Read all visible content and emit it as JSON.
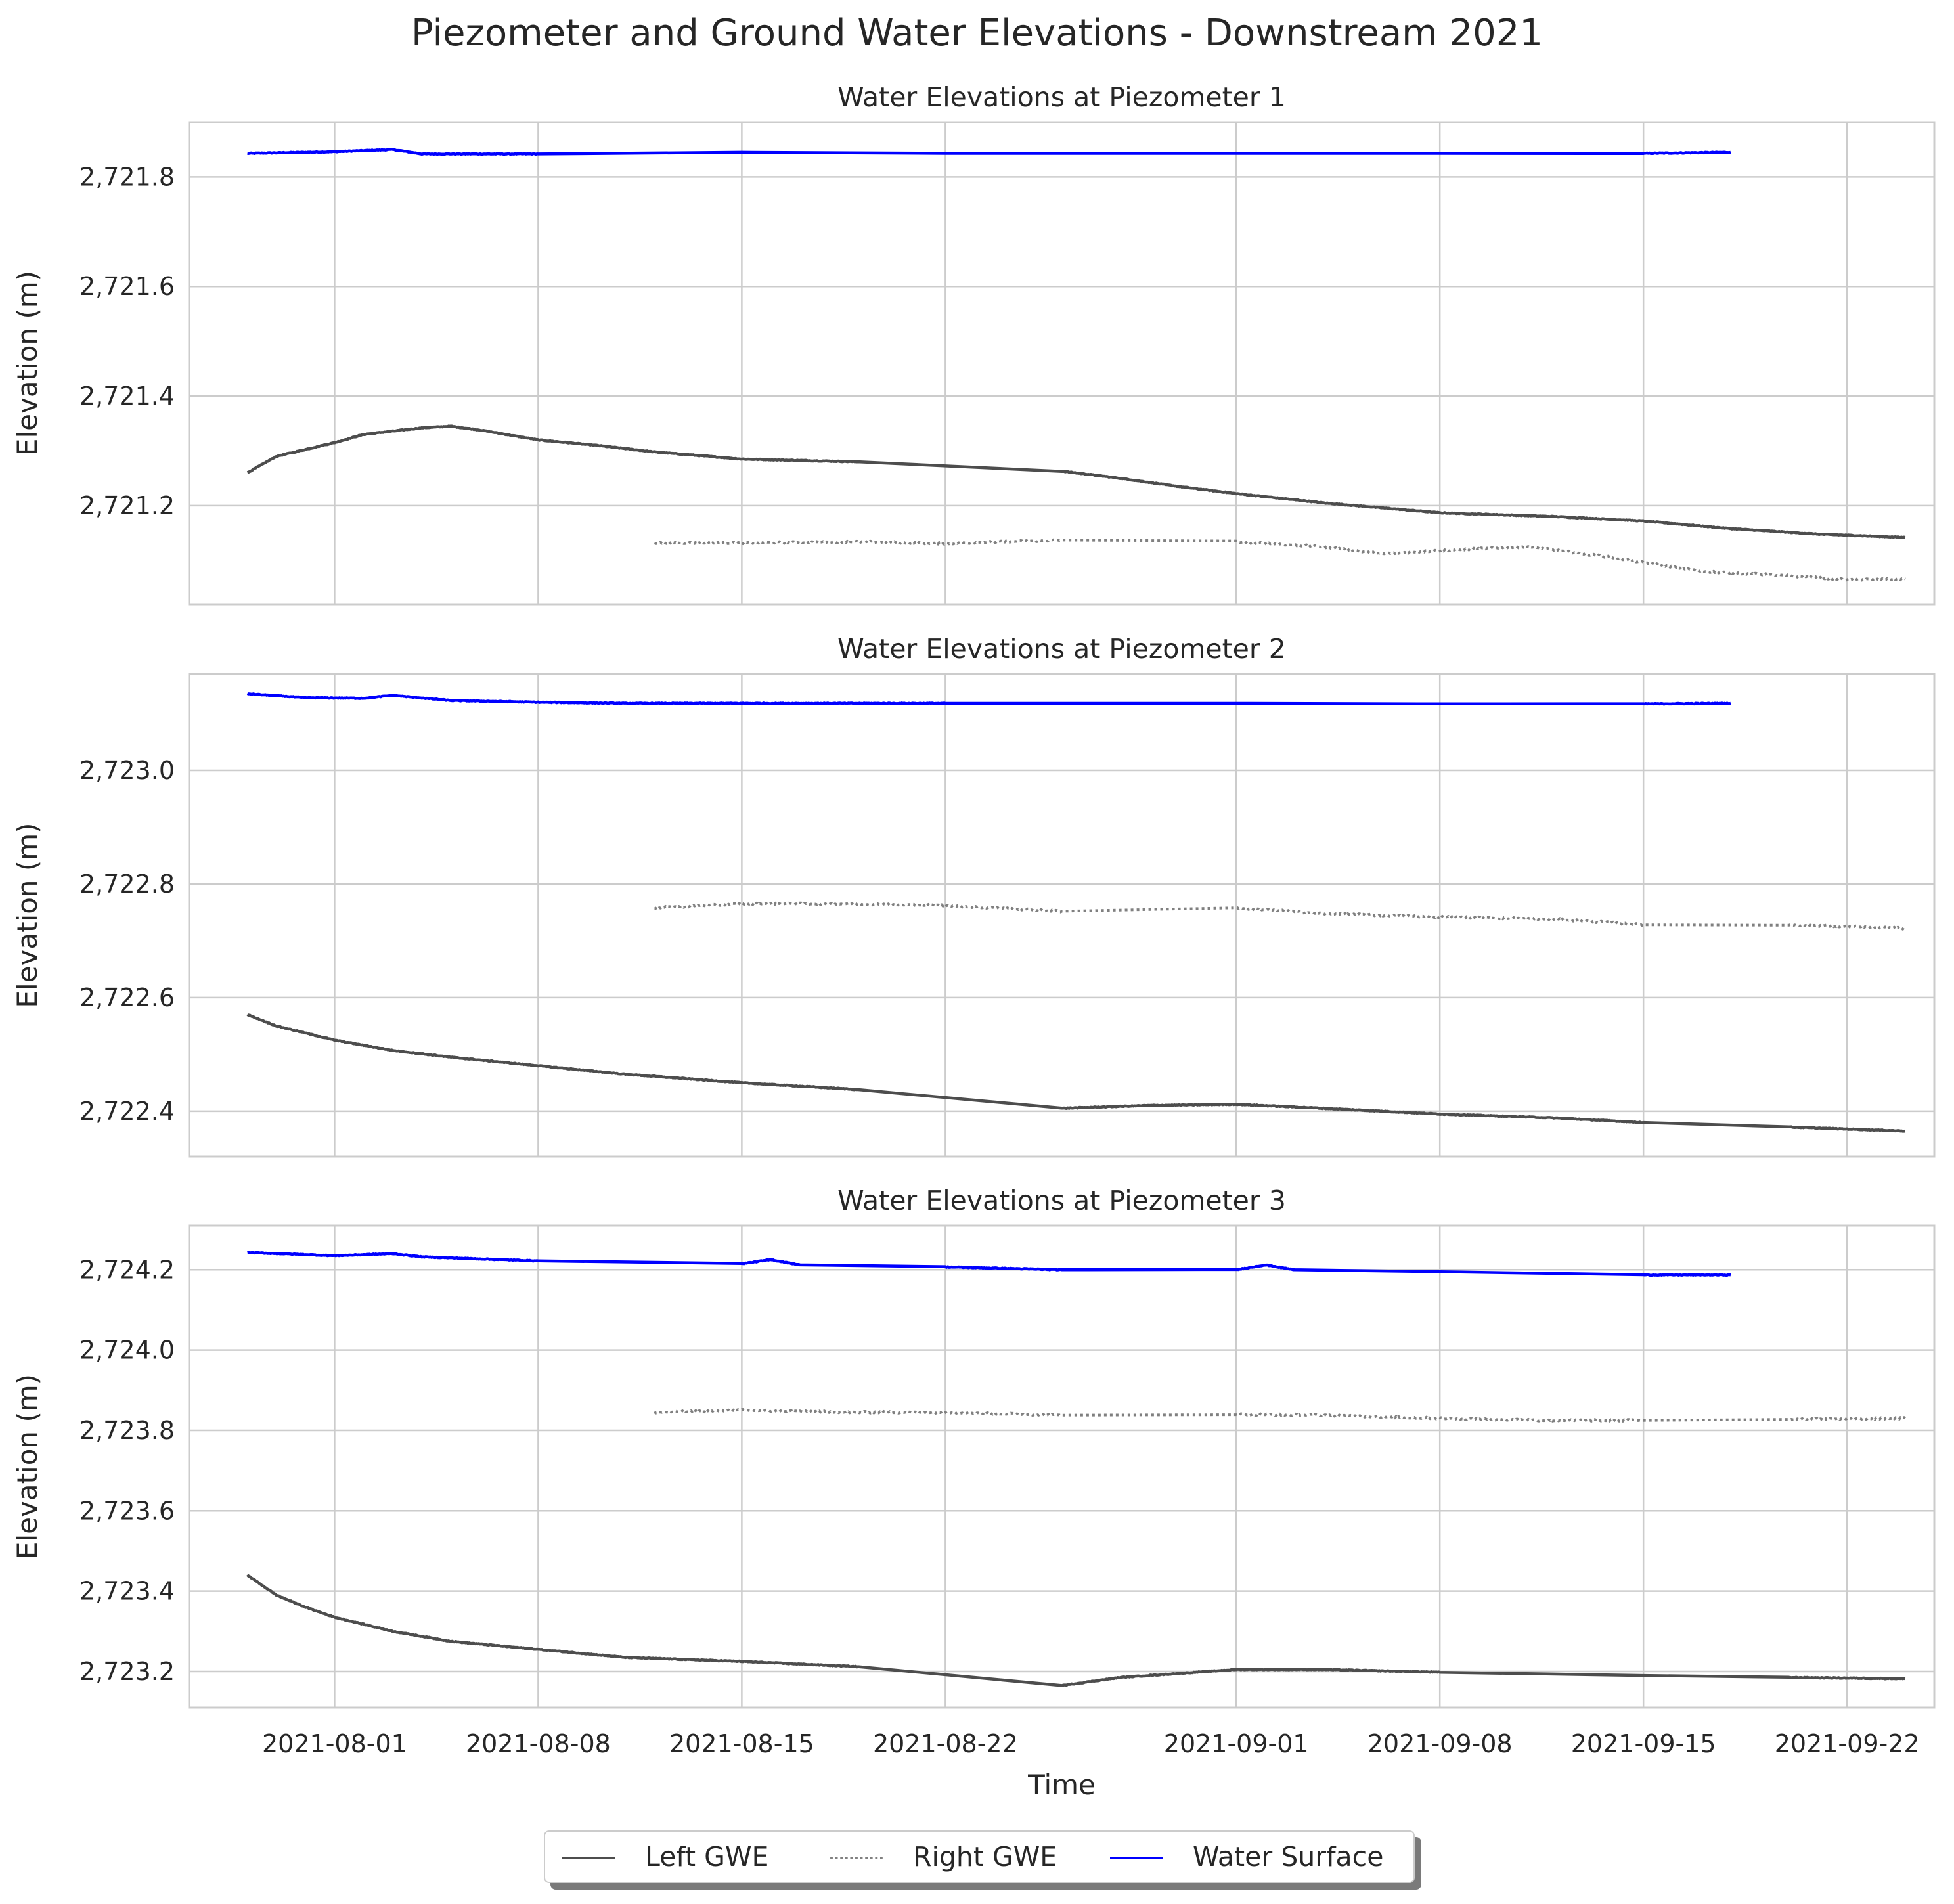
{
  "title": "Piezometer and Ground Water Elevations - Downstream 2021",
  "xlabel": "Time",
  "ylabel": "Elevation (m)",
  "legend": [
    {
      "label": "Left GWE",
      "color": "#4d4d4d",
      "style": "solid"
    },
    {
      "label": "Right GWE",
      "color": "#808080",
      "style": "dotted"
    },
    {
      "label": "Water Surface",
      "color": "#0000ff",
      "style": "solid"
    }
  ],
  "chart_data": {
    "type": "line",
    "x_type": "date",
    "x_ticks": [
      "2021-08-01",
      "2021-08-08",
      "2021-08-15",
      "2021-08-22",
      "2021-09-01",
      "2021-09-08",
      "2021-09-15",
      "2021-09-22"
    ],
    "xlim": [
      "2021-07-27",
      "2021-09-25"
    ],
    "grid": true,
    "legend_position": "bottom-center",
    "panels": [
      {
        "title": "Water Elevations at Piezometer 1",
        "ylim": [
          2721.02,
          2721.9
        ],
        "y_ticks": [
          2721.2,
          2721.4,
          2721.6,
          2721.8
        ],
        "y_tick_labels": [
          "2,721.2",
          "2,721.4",
          "2,721.6",
          "2,721.8"
        ],
        "series": [
          {
            "name": "Water Surface",
            "segments": [
              [
                [
                  "2021-07-29",
                  2721.843
                ],
                [
                  "2021-08-01",
                  2721.846
                ],
                [
                  "2021-08-03",
                  2721.85
                ],
                [
                  "2021-08-04",
                  2721.842
                ],
                [
                  "2021-08-08",
                  2721.842
                ],
                [
                  "2021-08-15",
                  2721.845
                ],
                [
                  "2021-08-22",
                  2721.843
                ],
                [
                  "2021-09-01",
                  2721.843
                ],
                [
                  "2021-09-08",
                  2721.843
                ],
                [
                  "2021-09-15",
                  2721.843
                ],
                [
                  "2021-09-18",
                  2721.845
                ]
              ]
            ]
          },
          {
            "name": "Left GWE",
            "segments": [
              [
                [
                  "2021-07-29",
                  2721.26
                ],
                [
                  "2021-07-30",
                  2721.29
                ],
                [
                  "2021-08-01",
                  2721.315
                ],
                [
                  "2021-08-02",
                  2721.33
                ],
                [
                  "2021-08-04",
                  2721.342
                ],
                [
                  "2021-08-05",
                  2721.345
                ],
                [
                  "2021-08-06",
                  2721.338
                ],
                [
                  "2021-08-08",
                  2721.32
                ],
                [
                  "2021-08-10",
                  2721.31
                ],
                [
                  "2021-08-12",
                  2721.298
                ],
                [
                  "2021-08-15",
                  2721.285
                ],
                [
                  "2021-08-19",
                  2721.28
                ],
                [
                  "2021-08-26",
                  2721.263
                ],
                [
                  "2021-08-28",
                  2721.25
                ],
                [
                  "2021-08-30",
                  2721.235
                ],
                [
                  "2021-09-01",
                  2721.222
                ],
                [
                  "2021-09-04",
                  2721.205
                ],
                [
                  "2021-09-08",
                  2721.187
                ],
                [
                  "2021-09-12",
                  2721.18
                ],
                [
                  "2021-09-15",
                  2721.172
                ],
                [
                  "2021-09-18",
                  2721.158
                ],
                [
                  "2021-09-21",
                  2721.148
                ],
                [
                  "2021-09-24",
                  2721.142
                ]
              ]
            ]
          },
          {
            "name": "Right GWE",
            "segments": [
              [
                [
                  "2021-08-12",
                  2721.132
                ],
                [
                  "2021-08-15",
                  2721.132
                ],
                [
                  "2021-08-19",
                  2721.134
                ],
                [
                  "2021-08-22",
                  2721.131
                ],
                [
                  "2021-08-26",
                  2721.137
                ],
                [
                  "2021-09-01",
                  2721.134
                ],
                [
                  "2021-09-04",
                  2721.125
                ],
                [
                  "2021-09-06",
                  2721.112
                ],
                [
                  "2021-09-08",
                  2721.118
                ],
                [
                  "2021-09-11",
                  2721.125
                ],
                [
                  "2021-09-14",
                  2721.105
                ],
                [
                  "2021-09-17",
                  2721.08
                ],
                [
                  "2021-09-20",
                  2721.072
                ],
                [
                  "2021-09-22",
                  2721.065
                ],
                [
                  "2021-09-24",
                  2721.066
                ]
              ]
            ]
          }
        ]
      },
      {
        "title": "Water Elevations at Piezometer 2",
        "ylim": [
          2722.32,
          2723.17
        ],
        "y_ticks": [
          2722.4,
          2722.6,
          2722.8,
          2723.0
        ],
        "y_tick_labels": [
          "2,722.4",
          "2,722.6",
          "2,722.8",
          "2,723.0"
        ],
        "series": [
          {
            "name": "Water Surface",
            "segments": [
              [
                [
                  "2021-07-29",
                  2723.135
                ],
                [
                  "2021-07-31",
                  2723.128
                ],
                [
                  "2021-08-02",
                  2723.127
                ],
                [
                  "2021-08-03",
                  2723.132
                ],
                [
                  "2021-08-05",
                  2723.123
                ],
                [
                  "2021-08-08",
                  2723.12
                ],
                [
                  "2021-08-11",
                  2723.118
                ],
                [
                  "2021-08-15",
                  2723.118
                ],
                [
                  "2021-08-19",
                  2723.118
                ],
                [
                  "2021-08-22",
                  2723.118
                ],
                [
                  "2021-09-01",
                  2723.118
                ],
                [
                  "2021-09-08",
                  2723.117
                ],
                [
                  "2021-09-15",
                  2723.117
                ],
                [
                  "2021-09-18",
                  2723.118
                ]
              ]
            ]
          },
          {
            "name": "Left GWE",
            "segments": [
              [
                [
                  "2021-07-29",
                  2722.57
                ],
                [
                  "2021-07-30",
                  2722.55
                ],
                [
                  "2021-08-01",
                  2722.525
                ],
                [
                  "2021-08-03",
                  2722.507
                ],
                [
                  "2021-08-05",
                  2722.495
                ],
                [
                  "2021-08-08",
                  2722.48
                ],
                [
                  "2021-08-11",
                  2722.465
                ],
                [
                  "2021-08-15",
                  2722.45
                ],
                [
                  "2021-08-19",
                  2722.438
                ],
                [
                  "2021-08-26",
                  2722.405
                ],
                [
                  "2021-08-29",
                  2722.41
                ],
                [
                  "2021-09-01",
                  2722.412
                ],
                [
                  "2021-09-04",
                  2722.405
                ],
                [
                  "2021-09-08",
                  2722.395
                ],
                [
                  "2021-09-12",
                  2722.388
                ],
                [
                  "2021-09-15",
                  2722.38
                ],
                [
                  "2021-09-20",
                  2722.372
                ],
                [
                  "2021-09-24",
                  2722.365
                ]
              ]
            ]
          },
          {
            "name": "Right GWE",
            "segments": [
              [
                [
                  "2021-08-12",
                  2722.758
                ],
                [
                  "2021-08-15",
                  2722.765
                ],
                [
                  "2021-08-19",
                  2722.765
                ],
                [
                  "2021-08-22",
                  2722.762
                ],
                [
                  "2021-08-26",
                  2722.752
                ],
                [
                  "2021-09-01",
                  2722.758
                ],
                [
                  "2021-09-04",
                  2722.748
                ],
                [
                  "2021-09-08",
                  2722.742
                ],
                [
                  "2021-09-12",
                  2722.738
                ],
                [
                  "2021-09-15",
                  2722.728
                ],
                [
                  "2021-09-20",
                  2722.728
                ],
                [
                  "2021-09-24",
                  2722.722
                ]
              ]
            ]
          }
        ]
      },
      {
        "title": "Water Elevations at Piezometer 3",
        "ylim": [
          2723.11,
          2724.31
        ],
        "y_ticks": [
          2723.2,
          2723.4,
          2723.6,
          2723.8,
          2724.0,
          2724.2
        ],
        "y_tick_labels": [
          "2,723.2",
          "2,723.4",
          "2,723.6",
          "2,723.8",
          "2,724.0",
          "2,724.2"
        ],
        "series": [
          {
            "name": "Water Surface",
            "segments": [
              [
                [
                  "2021-07-29",
                  2724.243
                ],
                [
                  "2021-08-01",
                  2724.235
                ],
                [
                  "2021-08-03",
                  2724.24
                ],
                [
                  "2021-08-04",
                  2724.232
                ],
                [
                  "2021-08-08",
                  2724.222
                ],
                [
                  "2021-08-15",
                  2724.215
                ],
                [
                  "2021-08-16",
                  2724.225
                ],
                [
                  "2021-08-17",
                  2724.212
                ],
                [
                  "2021-08-22",
                  2724.207
                ],
                [
                  "2021-08-26",
                  2724.2
                ],
                [
                  "2021-09-01",
                  2724.2
                ],
                [
                  "2021-09-02",
                  2724.212
                ],
                [
                  "2021-09-03",
                  2724.2
                ],
                [
                  "2021-09-08",
                  2724.195
                ],
                [
                  "2021-09-15",
                  2724.187
                ],
                [
                  "2021-09-18",
                  2724.187
                ]
              ]
            ]
          },
          {
            "name": "Left GWE",
            "segments": [
              [
                [
                  "2021-07-29",
                  2723.44
                ],
                [
                  "2021-07-30",
                  2723.39
                ],
                [
                  "2021-07-31",
                  2723.36
                ],
                [
                  "2021-08-01",
                  2723.335
                ],
                [
                  "2021-08-03",
                  2723.3
                ],
                [
                  "2021-08-05",
                  2723.275
                ],
                [
                  "2021-08-08",
                  2723.255
                ],
                [
                  "2021-08-11",
                  2723.235
                ],
                [
                  "2021-08-15",
                  2723.225
                ],
                [
                  "2021-08-19",
                  2723.212
                ],
                [
                  "2021-08-26",
                  2723.165
                ],
                [
                  "2021-08-28",
                  2723.185
                ],
                [
                  "2021-09-01",
                  2723.205
                ],
                [
                  "2021-09-04",
                  2723.205
                ],
                [
                  "2021-09-08",
                  2723.198
                ],
                [
                  "2021-09-15",
                  2723.19
                ],
                [
                  "2021-09-20",
                  2723.185
                ],
                [
                  "2021-09-24",
                  2723.182
                ]
              ]
            ]
          },
          {
            "name": "Right GWE",
            "segments": [
              [
                [
                  "2021-08-12",
                  2723.845
                ],
                [
                  "2021-08-15",
                  2723.85
                ],
                [
                  "2021-08-19",
                  2723.845
                ],
                [
                  "2021-08-22",
                  2723.845
                ],
                [
                  "2021-08-26",
                  2723.838
                ],
                [
                  "2021-09-01",
                  2723.84
                ],
                [
                  "2021-09-04",
                  2723.838
                ],
                [
                  "2021-09-08",
                  2723.83
                ],
                [
                  "2021-09-12",
                  2723.825
                ],
                [
                  "2021-09-15",
                  2723.825
                ],
                [
                  "2021-09-20",
                  2723.828
                ],
                [
                  "2021-09-24",
                  2723.83
                ]
              ]
            ]
          }
        ]
      }
    ]
  }
}
